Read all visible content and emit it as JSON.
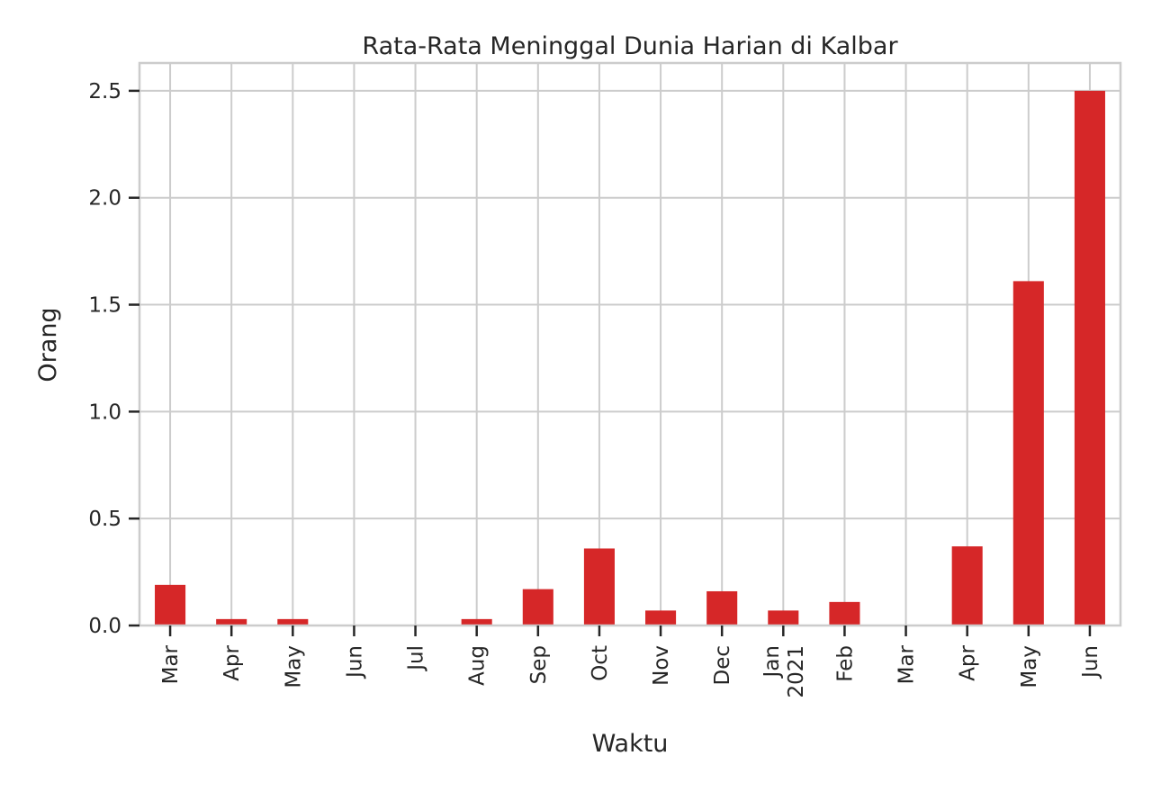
{
  "chart_data": {
    "type": "bar",
    "title": "Rata-Rata Meninggal Dunia Harian di Kalbar",
    "xlabel": "Waktu",
    "ylabel": "Orang",
    "categories": [
      "Mar",
      "Apr",
      "May",
      "Jun",
      "Jul",
      "Aug",
      "Sep",
      "Oct",
      "Nov",
      "Dec",
      "Jan\n2021",
      "Feb",
      "Mar",
      "Apr",
      "May",
      "Jun"
    ],
    "values": [
      0.19,
      0.03,
      0.03,
      0.0,
      0.0,
      0.03,
      0.17,
      0.36,
      0.07,
      0.16,
      0.07,
      0.11,
      0.0,
      0.37,
      1.61,
      2.5
    ],
    "ylim": [
      0,
      2.63
    ],
    "yticks": [
      0.0,
      0.5,
      1.0,
      1.5,
      2.0,
      2.5
    ],
    "ytick_labels": [
      "0.0",
      "0.5",
      "1.0",
      "1.5",
      "2.0",
      "2.5"
    ],
    "grid": true,
    "bar_color": "#d62728"
  }
}
